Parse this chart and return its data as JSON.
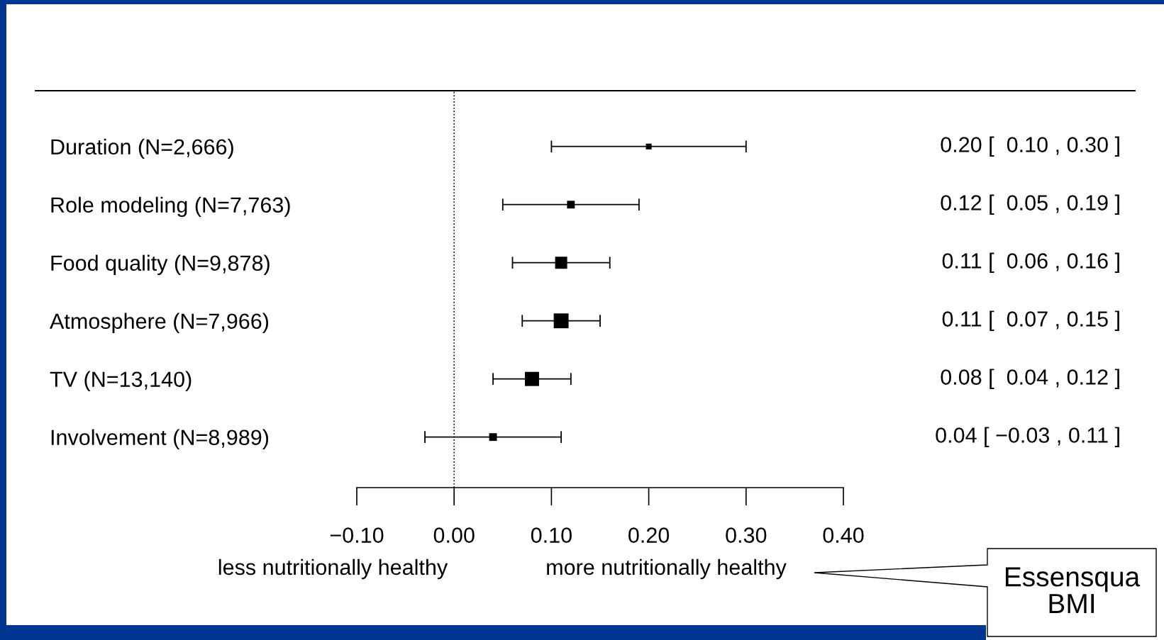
{
  "chart_data": {
    "type": "bubble",
    "orientation": "horizontal",
    "marker": "square",
    "categories": [
      "Duration (N=2,666)",
      "Role modeling (N=7,763)",
      "Food quality (N=9,878)",
      "Atmosphere (N=7,966)",
      "TV (N=13,140)",
      "Involvement (N=8,989)"
    ],
    "series": [
      {
        "color": "#000000",
        "values": [
          0.2,
          0.12,
          0.11,
          0.11,
          0.08,
          0.04
        ],
        "errors": [
          [
            0.1,
            0.3
          ],
          [
            0.05,
            0.19
          ],
          [
            0.06,
            0.16
          ],
          [
            0.07,
            0.15
          ],
          [
            0.04,
            0.12
          ],
          [
            -0.03,
            0.11
          ]
        ],
        "sizes": [
          0.15,
          0.27,
          0.66,
          1,
          0.91,
          0.27
        ],
        "value_labels": [
          "0.20 [  0.10 , 0.30 ]",
          "0.12 [  0.05 , 0.19 ]",
          "0.11 [  0.06 , 0.16 ]",
          "0.11 [  0.07 , 0.15 ]",
          "0.08 [  0.04 , 0.12 ]",
          "0.04 [ −0.03 , 0.11 ]"
        ]
      }
    ],
    "xlim": [
      -0.1,
      0.4
    ],
    "xticks": [
      {
        "value": -0.1,
        "label": "−0.10"
      },
      {
        "value": 0,
        "label": "0.00"
      },
      {
        "value": 0.1,
        "label": "0.10"
      },
      {
        "value": 0.2,
        "label": "0.20"
      },
      {
        "value": 0.3,
        "label": "0.30"
      },
      {
        "value": 0.4,
        "label": "0.40"
      }
    ],
    "ref_lines": [
      {
        "axis": "x",
        "value": 0,
        "color": "#000000",
        "line_style": "dotted"
      }
    ],
    "annotations": [
      "less nutritionally healthy",
      "more nutritionally healthy",
      "Essensqua\nBMI"
    ],
    "grid": false,
    "legend": false
  }
}
